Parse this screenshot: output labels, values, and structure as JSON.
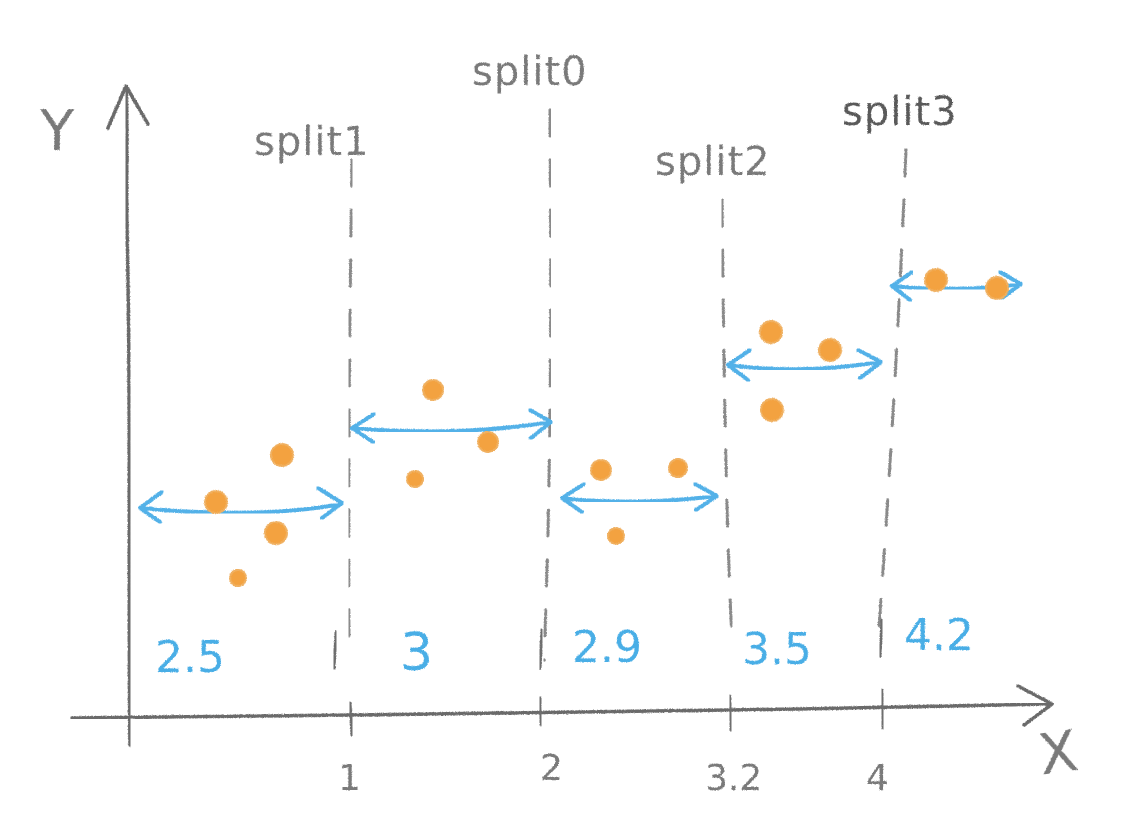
{
  "axes": {
    "x_label": "X",
    "y_label": "Y",
    "x_ticks": [
      {
        "value": 1,
        "label": "1"
      },
      {
        "value": 2,
        "label": "2"
      },
      {
        "value": 3.2,
        "label": "3.2"
      },
      {
        "value": 4,
        "label": "4"
      }
    ]
  },
  "splits": [
    {
      "label": "split0",
      "x": 2
    },
    {
      "label": "split1",
      "x": 1
    },
    {
      "label": "split2",
      "x": 3.2
    },
    {
      "label": "split3",
      "x": 4
    }
  ],
  "regions": [
    {
      "value_label": "2.5",
      "x_start": 0,
      "x_end": 1,
      "mean": 2.5
    },
    {
      "value_label": "3",
      "x_start": 1,
      "x_end": 2,
      "mean": 3
    },
    {
      "value_label": "2.9",
      "x_start": 2,
      "x_end": 3.2,
      "mean": 2.9
    },
    {
      "value_label": "3.5",
      "x_start": 3.2,
      "x_end": 4,
      "mean": 3.5
    },
    {
      "value_label": "4.2",
      "x_start": 4,
      "x_end": 4.7,
      "mean": 4.2
    }
  ],
  "colors": {
    "pencil": "#6e6e6e",
    "mean_arrow": "#52b1e8",
    "value_text": "#4aaee6",
    "points": "#f3a23f"
  }
}
